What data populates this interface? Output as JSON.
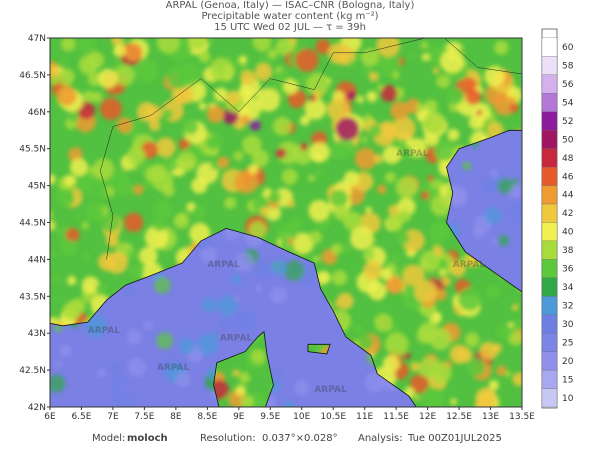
{
  "header": {
    "line1": "ARPAL (Genoa, Italy)  —  ISAC–CNR (Bologna, Italy)",
    "line2": "Precipitable water content (kg m⁻²)",
    "line3": "15 UTC Wed 02 JUL  —  τ = 39h"
  },
  "map": {
    "lat_labels": [
      "47N",
      "46.5N",
      "46N",
      "45.5N",
      "45N",
      "44.5N",
      "44N",
      "43.5N",
      "43N",
      "42.5N",
      "42N"
    ],
    "lon_labels": [
      "6E",
      "6.5E",
      "7E",
      "7.5E",
      "8E",
      "8.5E",
      "9E",
      "9.5E",
      "10E",
      "10.5E",
      "11E",
      "11.5E",
      "12E",
      "12.5E",
      "13E",
      "13.5E"
    ],
    "watermark": "ARPAL"
  },
  "colorbar": {
    "levels": [
      10,
      15,
      20,
      25,
      30,
      32,
      34,
      36,
      38,
      40,
      42,
      44,
      46,
      48,
      50,
      52,
      54,
      56,
      58,
      60
    ],
    "colors": [
      "#c8c8f4",
      "#a8a8f0",
      "#9090ec",
      "#7c84e8",
      "#6c80e4",
      "#4c9ad8",
      "#30a848",
      "#5cc83c",
      "#a8dc3c",
      "#f0f050",
      "#f0c83c",
      "#f09a32",
      "#e85a2c",
      "#c8283c",
      "#a01464",
      "#8c1c9c",
      "#b478d8",
      "#d4b0ec",
      "#ece0f8",
      "#ffffff"
    ]
  },
  "footer": {
    "model_label": "Model:",
    "model": "moloch",
    "res_label": "Resolution:",
    "res": "0.037°×0.028°",
    "analysis_label": "Analysis:",
    "analysis": "Tue 00Z01JUL2025"
  }
}
